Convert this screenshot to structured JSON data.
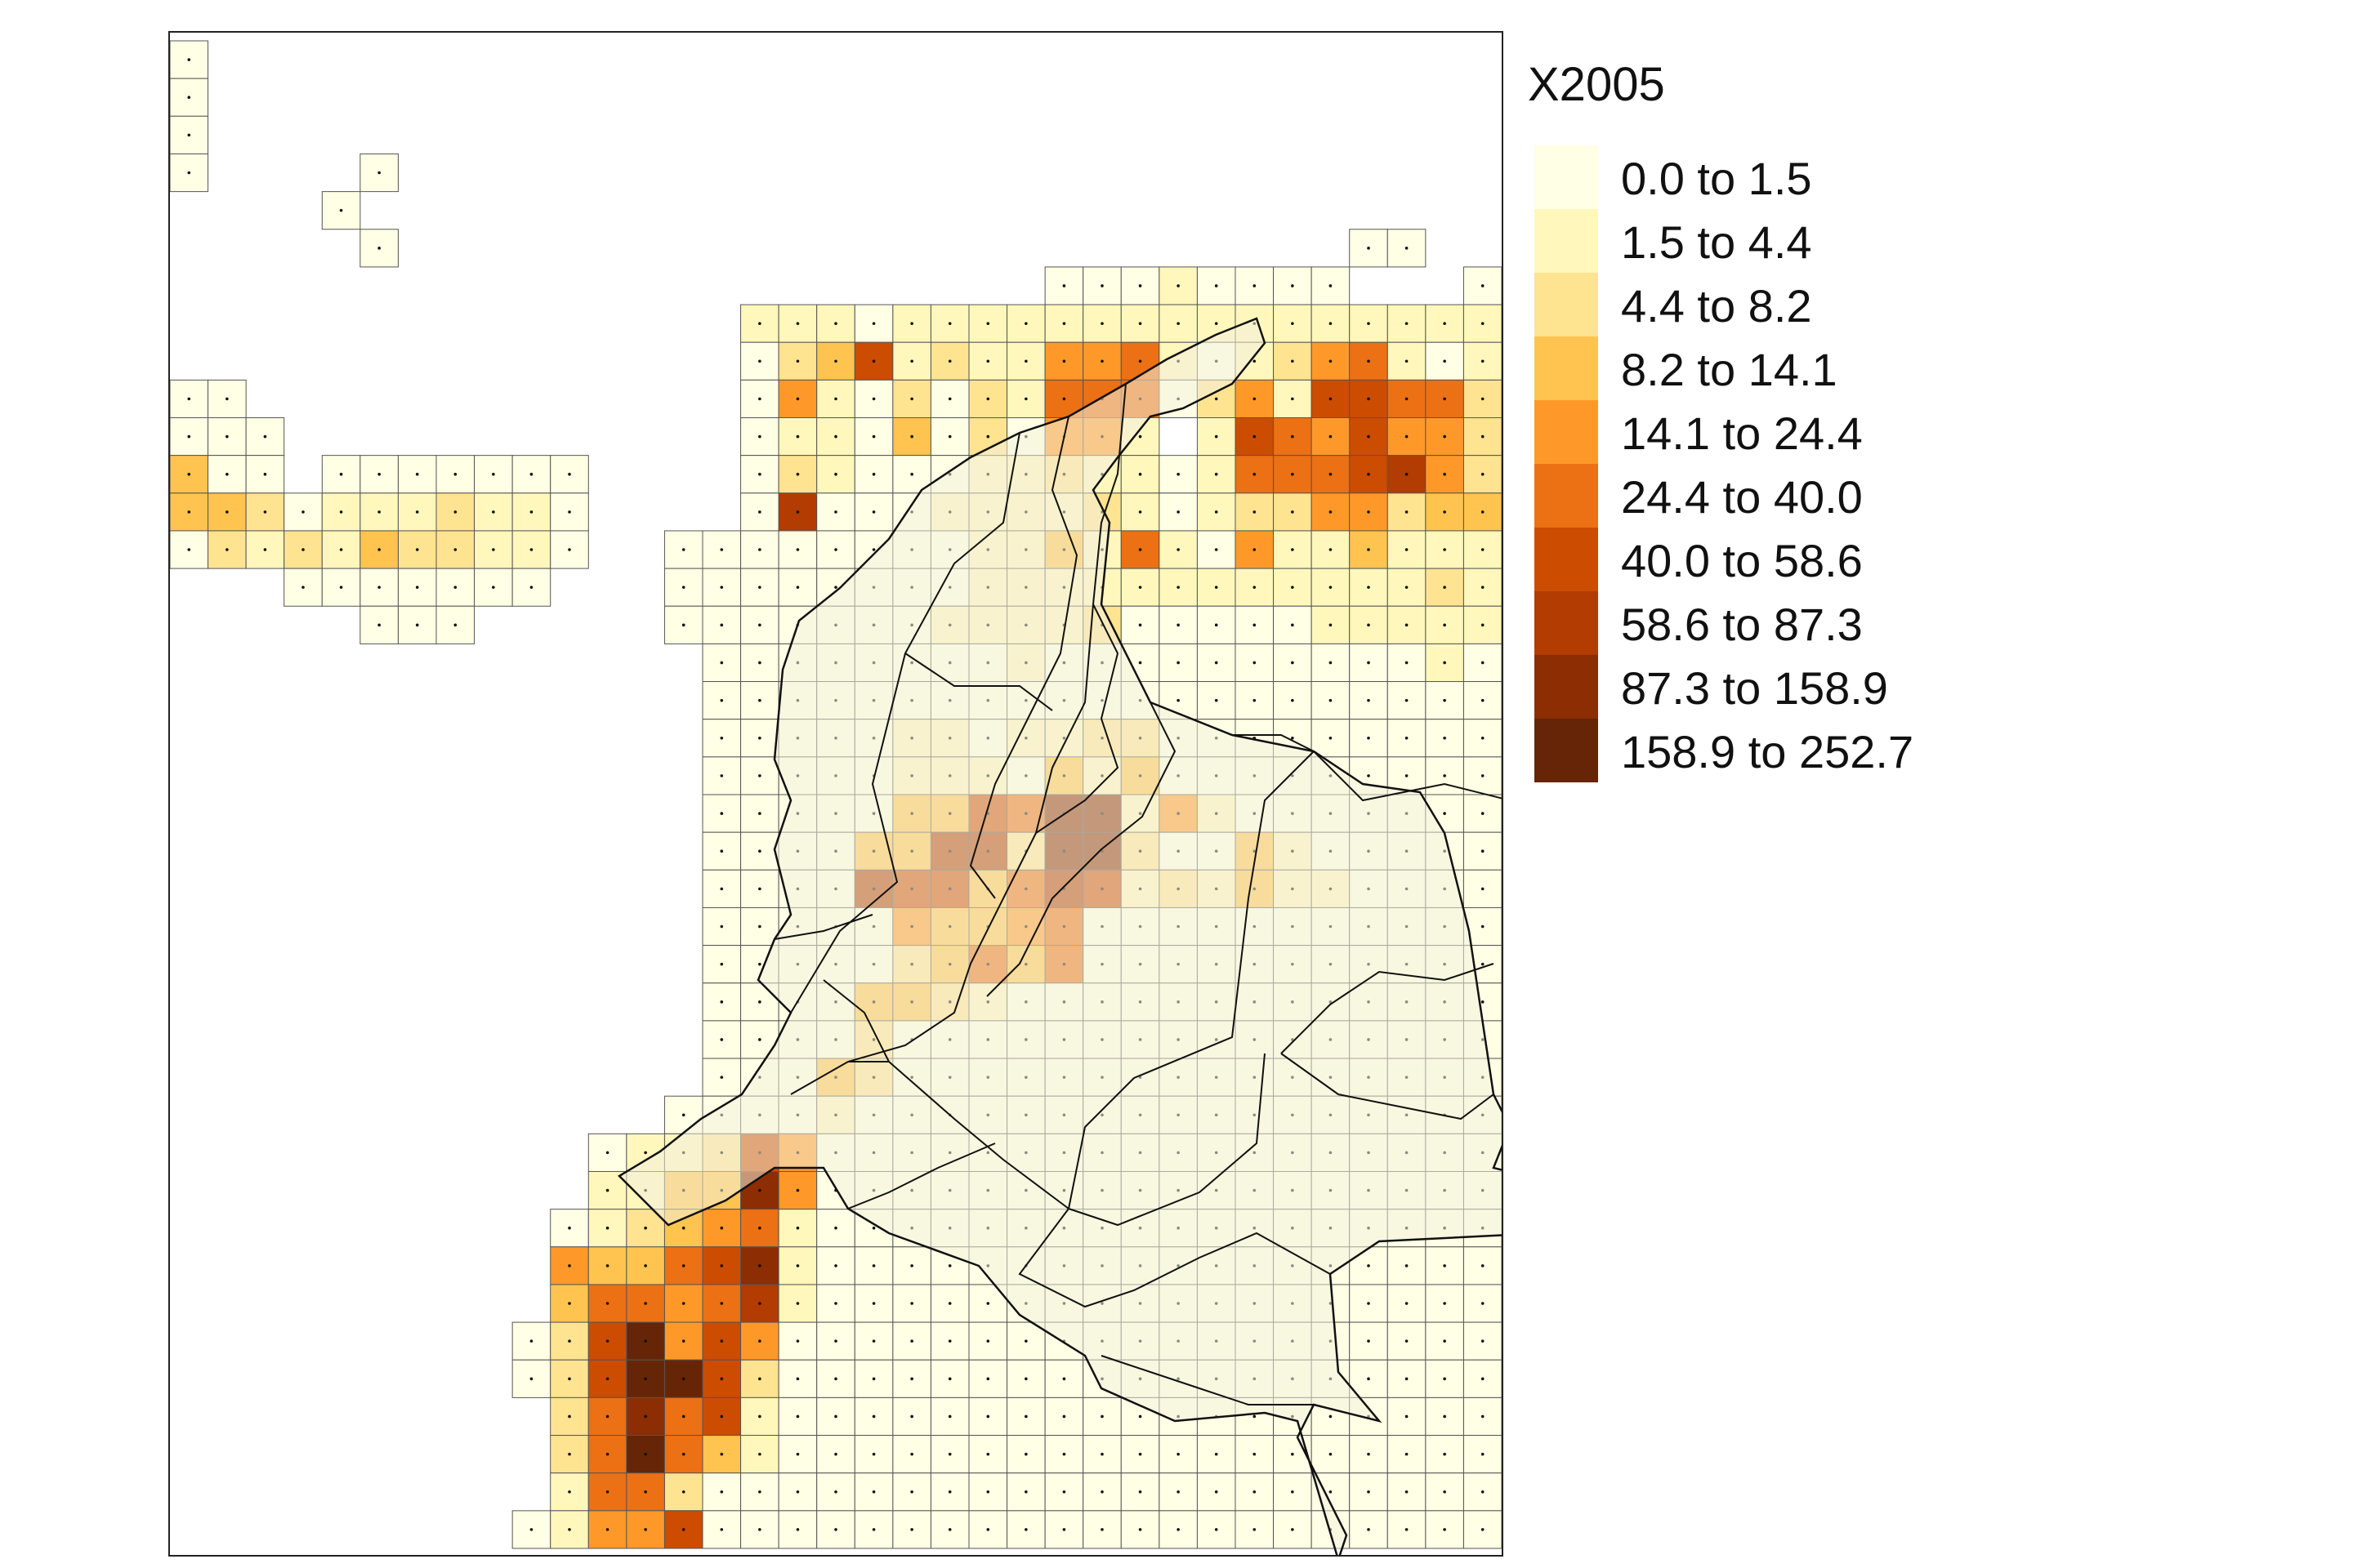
{
  "map": {
    "variable": "X2005",
    "palette": [
      "#ffffe5",
      "#fff7bc",
      "#fee391",
      "#fec44f",
      "#fe9929",
      "#ec7014",
      "#cc4c02",
      "#b23c02",
      "#8c2d04",
      "#662506"
    ],
    "grid_color": "#555555",
    "land_fill": "#f3f0dc",
    "border_color": "#111111"
  },
  "legend": {
    "title": "X2005",
    "classes": [
      {
        "label": "0.0 to 1.5",
        "color": "#ffffe5"
      },
      {
        "label": "1.5 to 4.4",
        "color": "#fff7bc"
      },
      {
        "label": "4.4 to 8.2",
        "color": "#fee391"
      },
      {
        "label": "8.2 to 14.1",
        "color": "#fec44f"
      },
      {
        "label": "14.1 to 24.4",
        "color": "#fe9929"
      },
      {
        "label": "24.4 to 40.0",
        "color": "#ec7014"
      },
      {
        "label": "40.0 to 58.6",
        "color": "#cc4c02"
      },
      {
        "label": "58.6 to 87.3",
        "color": "#b23c02"
      },
      {
        "label": "87.3 to 158.9",
        "color": "#8c2d04"
      },
      {
        "label": "158.9 to 252.7",
        "color": "#662506"
      }
    ]
  },
  "chart_data": {
    "type": "heatmap",
    "title": "X2005",
    "class_breaks": [
      0.0,
      1.5,
      4.4,
      8.2,
      14.1,
      24.4,
      40.0,
      58.6,
      87.3,
      158.9,
      252.7
    ],
    "grid": {
      "cols": 35,
      "rows": 40
    },
    "cell_classes": [
      [
        0,
        "",
        "",
        "",
        "",
        "",
        "",
        "",
        "",
        "",
        "",
        "",
        "",
        "",
        "",
        "",
        "",
        "",
        "",
        "",
        "",
        "",
        "",
        "",
        "",
        "",
        "",
        "",
        "",
        "",
        "",
        "",
        "",
        "",
        ""
      ],
      [
        0,
        "",
        "",
        "",
        "",
        "",
        "",
        "",
        "",
        "",
        "",
        "",
        "",
        "",
        "",
        "",
        "",
        "",
        "",
        "",
        "",
        "",
        "",
        "",
        "",
        "",
        "",
        "",
        "",
        "",
        "",
        "",
        "",
        "",
        ""
      ],
      [
        0,
        "",
        "",
        "",
        "",
        "",
        "",
        "",
        "",
        "",
        "",
        "",
        "",
        "",
        "",
        "",
        "",
        "",
        "",
        "",
        "",
        "",
        "",
        "",
        "",
        "",
        "",
        "",
        "",
        "",
        "",
        "",
        "",
        "",
        ""
      ],
      [
        0,
        "",
        "",
        "",
        "",
        0,
        "",
        "",
        "",
        "",
        "",
        "",
        "",
        "",
        "",
        "",
        "",
        "",
        "",
        "",
        "",
        "",
        "",
        "",
        "",
        "",
        "",
        "",
        "",
        "",
        "",
        "",
        "",
        "",
        ""
      ],
      [
        "",
        "",
        "",
        "",
        0,
        "",
        "",
        "",
        "",
        "",
        "",
        "",
        "",
        "",
        "",
        "",
        "",
        "",
        "",
        "",
        "",
        "",
        "",
        "",
        "",
        "",
        "",
        "",
        "",
        "",
        "",
        "",
        "",
        "",
        ""
      ],
      [
        "",
        "",
        "",
        "",
        "",
        0,
        "",
        "",
        "",
        "",
        "",
        "",
        "",
        "",
        "",
        "",
        "",
        "",
        "",
        "",
        "",
        "",
        "",
        "",
        "",
        "",
        "",
        "",
        "",
        "",
        "",
        0,
        0,
        "",
        ""
      ],
      [
        "",
        "",
        "",
        "",
        "",
        "",
        "",
        "",
        "",
        "",
        "",
        "",
        "",
        "",
        "",
        "",
        "",
        "",
        "",
        "",
        "",
        "",
        "",
        0,
        0,
        0,
        1,
        0,
        0,
        0,
        0,
        "",
        "",
        "",
        0
      ],
      [
        "",
        "",
        "",
        "",
        "",
        "",
        "",
        "",
        "",
        "",
        "",
        "",
        "",
        "",
        "",
        1,
        1,
        1,
        0,
        1,
        1,
        1,
        1,
        1,
        1,
        1,
        1,
        1,
        1,
        1,
        1,
        1,
        1,
        1,
        1
      ],
      [
        "",
        "",
        "",
        "",
        "",
        "",
        "",
        "",
        "",
        "",
        "",
        "",
        "",
        "",
        "",
        0,
        2,
        3,
        6,
        1,
        2,
        1,
        1,
        4,
        4,
        5,
        1,
        0,
        1,
        2,
        4,
        5,
        1,
        0,
        1
      ],
      [
        0,
        0,
        "",
        "",
        "",
        "",
        "",
        "",
        "",
        "",
        "",
        "",
        "",
        "",
        "",
        0,
        4,
        1,
        0,
        2,
        0,
        2,
        1,
        5,
        5,
        5,
        0,
        2,
        4,
        1,
        6,
        6,
        5,
        5,
        2
      ],
      [
        0,
        0,
        0,
        "",
        "",
        "",
        "",
        "",
        "",
        "",
        "",
        "",
        "",
        "",
        "",
        0,
        1,
        1,
        0,
        3,
        0,
        2,
        0,
        4,
        4,
        1,
        "",
        1,
        6,
        5,
        4,
        6,
        4,
        4,
        2
      ],
      [
        3,
        0,
        0,
        "",
        0,
        0,
        0,
        0,
        0,
        0,
        0,
        "",
        "",
        "",
        "",
        0,
        2,
        1,
        0,
        0,
        0,
        1,
        1,
        2,
        1,
        1,
        0,
        1,
        5,
        5,
        5,
        6,
        7,
        4,
        2
      ],
      [
        3,
        3,
        2,
        0,
        1,
        1,
        1,
        2,
        1,
        1,
        0,
        "",
        "",
        "",
        "",
        0,
        7,
        0,
        0,
        0,
        1,
        1,
        1,
        1,
        2,
        1,
        0,
        1,
        2,
        2,
        4,
        4,
        2,
        3,
        3
      ],
      [
        0,
        2,
        1,
        2,
        1,
        3,
        2,
        2,
        1,
        1,
        0,
        "",
        "",
        0,
        0,
        0,
        0,
        0,
        0,
        0,
        0,
        1,
        1,
        3,
        1,
        5,
        1,
        0,
        4,
        1,
        1,
        3,
        1,
        1,
        1
      ],
      [
        "",
        "",
        "",
        0,
        0,
        0,
        0,
        0,
        0,
        0,
        "",
        "",
        "",
        0,
        0,
        0,
        0,
        0,
        0,
        0,
        0,
        1,
        1,
        1,
        1,
        1,
        1,
        1,
        1,
        1,
        1,
        1,
        1,
        2,
        1
      ],
      [
        "",
        "",
        "",
        "",
        "",
        0,
        0,
        0,
        "",
        "",
        "",
        "",
        "",
        0,
        0,
        0,
        0,
        0,
        0,
        0,
        1,
        1,
        1,
        1,
        2,
        0,
        0,
        0,
        0,
        0,
        1,
        1,
        1,
        1,
        1
      ],
      [
        "",
        "",
        "",
        "",
        "",
        "",
        "",
        "",
        "",
        "",
        "",
        "",
        "",
        "",
        0,
        0,
        0,
        0,
        0,
        0,
        0,
        0,
        1,
        0,
        0,
        0,
        0,
        0,
        0,
        0,
        0,
        0,
        0,
        1,
        0
      ],
      [
        "",
        "",
        "",
        "",
        "",
        "",
        "",
        "",
        "",
        "",
        "",
        "",
        "",
        "",
        0,
        0,
        0,
        0,
        0,
        0,
        0,
        0,
        0,
        0,
        0,
        0,
        0,
        0,
        0,
        0,
        0,
        0,
        0,
        0,
        0
      ],
      [
        "",
        "",
        "",
        "",
        "",
        "",
        "",
        "",
        "",
        "",
        "",
        "",
        "",
        "",
        0,
        0,
        0,
        0,
        0,
        1,
        1,
        0,
        1,
        1,
        2,
        2,
        0,
        0,
        0,
        0,
        0,
        0,
        0,
        0,
        0
      ],
      [
        "",
        "",
        "",
        "",
        "",
        "",
        "",
        "",
        "",
        "",
        "",
        "",
        "",
        "",
        0,
        0,
        0,
        0,
        0,
        1,
        1,
        1,
        0,
        3,
        1,
        3,
        0,
        0,
        0,
        0,
        0,
        0,
        0,
        0,
        0
      ],
      [
        "",
        "",
        "",
        "",
        "",
        "",
        "",
        "",
        "",
        "",
        "",
        "",
        "",
        "",
        0,
        0,
        0,
        0,
        0,
        3,
        3,
        6,
        5,
        8,
        8,
        1,
        4,
        1,
        0,
        0,
        0,
        0,
        0,
        0,
        0
      ],
      [
        "",
        "",
        "",
        "",
        "",
        "",
        "",
        "",
        "",
        "",
        "",
        "",
        "",
        "",
        0,
        0,
        0,
        0,
        3,
        3,
        7,
        7,
        2,
        8,
        8,
        2,
        0,
        0,
        3,
        1,
        0,
        0,
        0,
        0,
        0
      ],
      [
        "",
        "",
        "",
        "",
        "",
        "",
        "",
        "",
        "",
        "",
        "",
        "",
        "",
        "",
        0,
        0,
        0,
        0,
        7,
        6,
        6,
        3,
        5,
        7,
        6,
        1,
        2,
        1,
        3,
        1,
        1,
        0,
        0,
        0,
        0
      ],
      [
        "",
        "",
        "",
        "",
        "",
        "",
        "",
        "",
        "",
        "",
        "",
        "",
        "",
        "",
        0,
        0,
        0,
        0,
        0,
        4,
        3,
        3,
        4,
        5,
        0,
        0,
        0,
        0,
        0,
        0,
        0,
        0,
        0,
        0,
        0
      ],
      [
        "",
        "",
        "",
        "",
        "",
        "",
        "",
        "",
        "",
        "",
        "",
        "",
        "",
        "",
        0,
        0,
        0,
        0,
        0,
        2,
        3,
        5,
        3,
        5,
        0,
        0,
        0,
        0,
        0,
        0,
        0,
        0,
        0,
        0,
        0
      ],
      [
        "",
        "",
        "",
        "",
        "",
        "",
        "",
        "",
        "",
        "",
        "",
        "",
        "",
        "",
        0,
        0,
        0,
        0,
        3,
        3,
        2,
        1,
        0,
        0,
        0,
        0,
        0,
        0,
        0,
        0,
        0,
        0,
        0,
        0,
        0
      ],
      [
        "",
        "",
        "",
        "",
        "",
        "",
        "",
        "",
        "",
        "",
        "",
        "",
        "",
        "",
        0,
        0,
        0,
        0,
        2,
        0,
        0,
        0,
        0,
        0,
        0,
        0,
        0,
        0,
        0,
        0,
        0,
        0,
        0,
        0,
        0
      ],
      [
        "",
        "",
        "",
        "",
        "",
        "",
        "",
        "",
        "",
        "",
        "",
        "",
        "",
        "",
        0,
        0,
        0,
        3,
        2,
        0,
        0,
        0,
        0,
        0,
        0,
        0,
        0,
        0,
        0,
        0,
        0,
        0,
        0,
        0,
        0
      ],
      [
        "",
        "",
        "",
        "",
        "",
        "",
        "",
        "",
        "",
        "",
        "",
        "",
        "",
        0,
        0,
        0,
        0,
        1,
        0,
        0,
        0,
        0,
        0,
        0,
        0,
        0,
        0,
        0,
        0,
        0,
        0,
        0,
        0,
        0,
        0
      ],
      [
        "",
        "",
        "",
        "",
        "",
        "",
        "",
        "",
        "",
        "",
        "",
        0,
        1,
        1,
        2,
        6,
        4,
        0,
        0,
        0,
        0,
        0,
        0,
        0,
        0,
        0,
        0,
        0,
        0,
        0,
        0,
        0,
        0,
        0,
        0
      ],
      [
        "",
        "",
        "",
        "",
        "",
        "",
        "",
        "",
        "",
        "",
        "",
        1,
        1,
        3,
        3,
        8,
        4,
        0,
        0,
        0,
        0,
        0,
        0,
        0,
        0,
        0,
        0,
        0,
        0,
        0,
        0,
        0,
        0,
        0,
        0
      ],
      [
        "",
        "",
        "",
        "",
        "",
        "",
        "",
        "",
        "",
        "",
        0,
        1,
        2,
        3,
        4,
        5,
        1,
        0,
        0,
        0,
        0,
        0,
        0,
        0,
        0,
        0,
        0,
        0,
        0,
        0,
        0,
        0,
        0,
        0,
        0
      ],
      [
        "",
        "",
        "",
        "",
        "",
        "",
        "",
        "",
        "",
        "",
        4,
        3,
        3,
        5,
        6,
        8,
        1,
        0,
        0,
        0,
        0,
        0,
        0,
        0,
        0,
        0,
        0,
        0,
        0,
        0,
        0,
        0,
        0,
        0,
        0
      ],
      [
        "",
        "",
        "",
        "",
        "",
        "",
        "",
        "",
        "",
        "",
        3,
        5,
        5,
        4,
        5,
        7,
        1,
        0,
        0,
        0,
        0,
        0,
        0,
        0,
        0,
        0,
        0,
        0,
        0,
        0,
        0,
        0,
        0,
        0,
        0
      ],
      [
        "",
        "",
        "",
        "",
        "",
        "",
        "",
        "",
        "",
        0,
        2,
        6,
        9,
        4,
        6,
        4,
        0,
        0,
        0,
        0,
        0,
        0,
        0,
        0,
        0,
        0,
        0,
        0,
        0,
        0,
        0,
        0,
        0,
        0,
        0
      ],
      [
        "",
        "",
        "",
        "",
        "",
        "",
        "",
        "",
        "",
        0,
        2,
        6,
        9,
        9,
        6,
        2,
        0,
        0,
        0,
        0,
        0,
        0,
        0,
        0,
        0,
        0,
        0,
        0,
        0,
        0,
        0,
        0,
        0,
        0,
        0
      ],
      [
        "",
        "",
        "",
        "",
        "",
        "",
        "",
        "",
        "",
        "",
        2,
        5,
        8,
        5,
        6,
        1,
        0,
        0,
        0,
        0,
        0,
        0,
        0,
        0,
        0,
        0,
        0,
        0,
        0,
        0,
        0,
        0,
        0,
        0,
        0
      ],
      [
        "",
        "",
        "",
        "",
        "",
        "",
        "",
        "",
        "",
        "",
        2,
        5,
        9,
        5,
        3,
        1,
        0,
        0,
        0,
        0,
        0,
        0,
        0,
        0,
        0,
        0,
        0,
        0,
        0,
        0,
        0,
        0,
        0,
        0,
        0
      ],
      [
        "",
        "",
        "",
        "",
        "",
        "",
        "",
        "",
        "",
        "",
        1,
        5,
        5,
        2,
        0,
        0,
        0,
        0,
        0,
        0,
        0,
        0,
        0,
        0,
        0,
        0,
        0,
        0,
        0,
        0,
        0,
        0,
        0,
        0,
        0
      ],
      [
        "",
        "",
        "",
        "",
        "",
        "",
        "",
        "",
        "",
        0,
        1,
        4,
        4,
        6,
        0,
        0,
        0,
        0,
        0,
        0,
        0,
        0,
        0,
        0,
        0,
        0,
        0,
        0,
        0,
        0,
        0,
        0,
        0,
        0,
        0
      ]
    ]
  }
}
